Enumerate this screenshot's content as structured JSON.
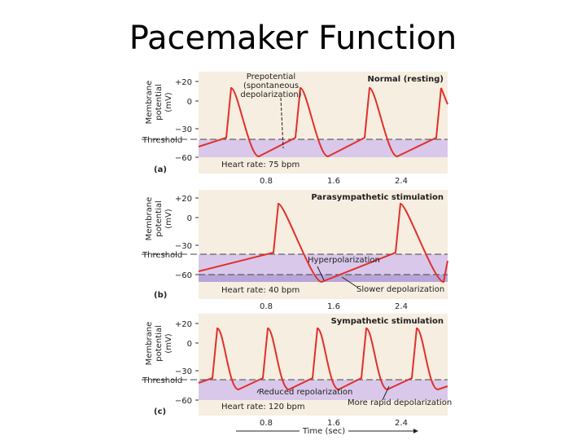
{
  "title": "Pacemaker Function",
  "panels": [
    {
      "letter": "(a)",
      "heading": "Normal (resting)",
      "y_axis_label": [
        "Membrane",
        "potential",
        "(mV)"
      ],
      "yticks": [
        "+20",
        "0",
        "−30",
        "−60"
      ],
      "threshold": "Threshold",
      "heart_rate": "Heart rate: 75 bpm",
      "xticks": [
        "0.8",
        "1.6",
        "2.4"
      ],
      "annotations": [
        [
          "Prepotential",
          "(spontaneous",
          "depolarization)"
        ]
      ]
    },
    {
      "letter": "(b)",
      "heading": "Parasympathetic stimulation",
      "y_axis_label": [
        "Membrane",
        "potential",
        "(mV)"
      ],
      "yticks": [
        "+20",
        "0",
        "−30",
        "−60"
      ],
      "threshold": "Threshold",
      "heart_rate": "Heart rate: 40 bpm",
      "xticks": [
        "0.8",
        "1.6",
        "2.4"
      ],
      "annotations": [
        [
          "Hyperpolarization"
        ],
        [
          "Slower depolarization"
        ]
      ]
    },
    {
      "letter": "(c)",
      "heading": "Sympathetic stimulation",
      "y_axis_label": [
        "Membrane",
        "potential",
        "(mV)"
      ],
      "yticks": [
        "+20",
        "0",
        "−30",
        "−60"
      ],
      "threshold": "Threshold",
      "heart_rate": "Heart rate: 120 bpm",
      "xticks": [
        "0.8",
        "1.6",
        "2.4"
      ],
      "annotations": [
        [
          "Reduced repolarization"
        ],
        [
          "More rapid depolarization"
        ]
      ]
    }
  ],
  "x_axis_label": "Time (sec)"
}
